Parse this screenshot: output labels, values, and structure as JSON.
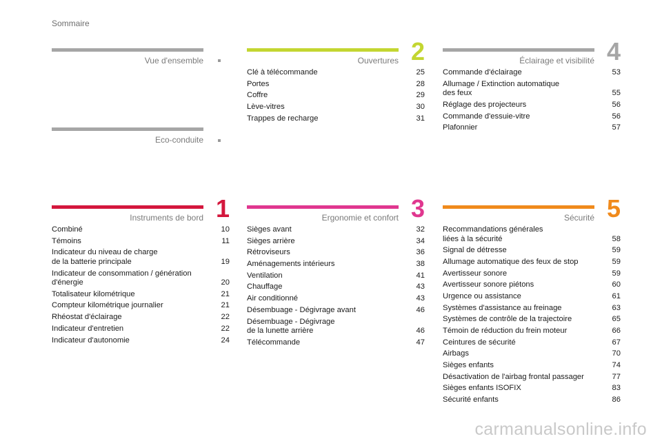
{
  "header": {
    "title": "Sommaire"
  },
  "sections": [
    {
      "id": "vue",
      "title": "Vue d'ensemble",
      "number": "",
      "color": "#a6a6a6",
      "entries": []
    },
    {
      "id": "eco",
      "title": "Eco-conduite",
      "number": "",
      "color": "#a6a6a6",
      "entries": []
    },
    {
      "id": "ouvertures",
      "title": "Ouvertures",
      "number": "2",
      "color": "#c3d631",
      "entries": [
        {
          "label": "Clé à télécommande",
          "page": "25"
        },
        {
          "label": "Portes",
          "page": "28"
        },
        {
          "label": "Coffre",
          "page": "29"
        },
        {
          "label": "Lève-vitres",
          "page": "30"
        },
        {
          "label": "Trappes de recharge",
          "page": "31"
        }
      ]
    },
    {
      "id": "eclairage",
      "title": "Éclairage et visibilité",
      "number": "4",
      "color": "#a6a6a6",
      "entries": [
        {
          "label": "Commande d'éclairage",
          "page": "53"
        },
        {
          "label": "Allumage / Extinction automatique\n   des feux",
          "page": "55"
        },
        {
          "label": "Réglage des projecteurs",
          "page": "56"
        },
        {
          "label": "Commande d'essuie-vitre",
          "page": "56"
        },
        {
          "label": "Plafonnier",
          "page": "57"
        }
      ]
    },
    {
      "id": "instruments",
      "title": "Instruments de bord",
      "number": "1",
      "color": "#d4173d",
      "entries": [
        {
          "label": "Combiné",
          "page": "10"
        },
        {
          "label": "Témoins",
          "page": "11"
        },
        {
          "label": "Indicateur du niveau de charge\n   de la batterie principale",
          "page": "19"
        },
        {
          "label": "Indicateur de consommation / génération\n   d'énergie",
          "page": "20"
        },
        {
          "label": "Totalisateur kilométrique",
          "page": "21"
        },
        {
          "label": "Compteur kilométrique journalier",
          "page": "21"
        },
        {
          "label": "Rhéostat d'éclairage",
          "page": "22"
        },
        {
          "label": "Indicateur d'entretien",
          "page": "22"
        },
        {
          "label": "Indicateur d'autonomie",
          "page": "24"
        }
      ]
    },
    {
      "id": "ergonomie",
      "title": "Ergonomie et confort",
      "number": "3",
      "color": "#e0378f",
      "entries": [
        {
          "label": "Sièges avant",
          "page": "32"
        },
        {
          "label": "Sièges arrière",
          "page": "34"
        },
        {
          "label": "Rétroviseurs",
          "page": "36"
        },
        {
          "label": "Aménagements intérieurs",
          "page": "38"
        },
        {
          "label": "Ventilation",
          "page": "41"
        },
        {
          "label": "Chauffage",
          "page": "43"
        },
        {
          "label": "Air conditionné",
          "page": "43"
        },
        {
          "label": "Désembuage - Dégivrage avant",
          "page": "46"
        },
        {
          "label": "Désembuage - Dégivrage\n   de la lunette arrière",
          "page": "46"
        },
        {
          "label": "Télécommande",
          "page": "47"
        }
      ]
    },
    {
      "id": "securite",
      "title": "Sécurité",
      "number": "5",
      "color": "#f08a1c",
      "entries": [
        {
          "label": "Recommandations générales\n   liées à la sécurité",
          "page": "58"
        },
        {
          "label": "Signal de détresse",
          "page": "59"
        },
        {
          "label": "Allumage automatique des feux de stop",
          "page": "59"
        },
        {
          "label": "Avertisseur sonore",
          "page": "59"
        },
        {
          "label": "Avertisseur sonore piétons",
          "page": "60"
        },
        {
          "label": "Urgence ou assistance",
          "page": "61"
        },
        {
          "label": "Systèmes d'assistance au freinage",
          "page": "63"
        },
        {
          "label": "Systèmes de contrôle de la trajectoire",
          "page": "65"
        },
        {
          "label": "Témoin de réduction du frein moteur",
          "page": "66"
        },
        {
          "label": "Ceintures de sécurité",
          "page": "67"
        },
        {
          "label": "Airbags",
          "page": "70"
        },
        {
          "label": "Sièges enfants",
          "page": "74"
        },
        {
          "label": "Désactivation de l'airbag frontal passager",
          "page": "77"
        },
        {
          "label": "Sièges enfants ISOFIX",
          "page": "83"
        },
        {
          "label": "Sécurité enfants",
          "page": "86"
        }
      ]
    }
  ],
  "watermark": "carmanualsonline.info"
}
